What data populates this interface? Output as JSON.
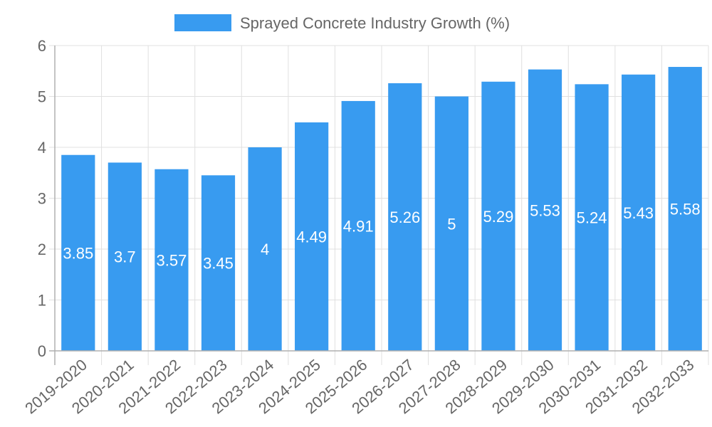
{
  "chart_data": {
    "type": "bar",
    "title": "",
    "xlabel": "",
    "ylabel": "",
    "ylim": [
      0,
      6
    ],
    "yticks": [
      "0",
      "1",
      "2",
      "3",
      "4",
      "5",
      "6"
    ],
    "grid": true,
    "legend": {
      "position": "top-center",
      "entries": [
        "Sprayed Concrete Industry Growth (%)"
      ]
    },
    "categories": [
      "2019-2020",
      "2020-2021",
      "2021-2022",
      "2022-2023",
      "2023-2024",
      "2024-2025",
      "2025-2026",
      "2026-2027",
      "2027-2028",
      "2028-2029",
      "2029-2030",
      "2030-2031",
      "2031-2032",
      "2032-2033"
    ],
    "series": [
      {
        "name": "Sprayed Concrete Industry Growth (%)",
        "color": "#389bf0",
        "values": [
          3.85,
          3.7,
          3.57,
          3.45,
          4,
          4.49,
          4.91,
          5.26,
          5,
          5.29,
          5.53,
          5.24,
          5.43,
          5.58
        ],
        "labels": [
          "3.85",
          "3.7",
          "3.57",
          "3.45",
          "4",
          "4.49",
          "4.91",
          "5.26",
          "5",
          "5.29",
          "5.53",
          "5.24",
          "5.43",
          "5.58"
        ]
      }
    ]
  }
}
